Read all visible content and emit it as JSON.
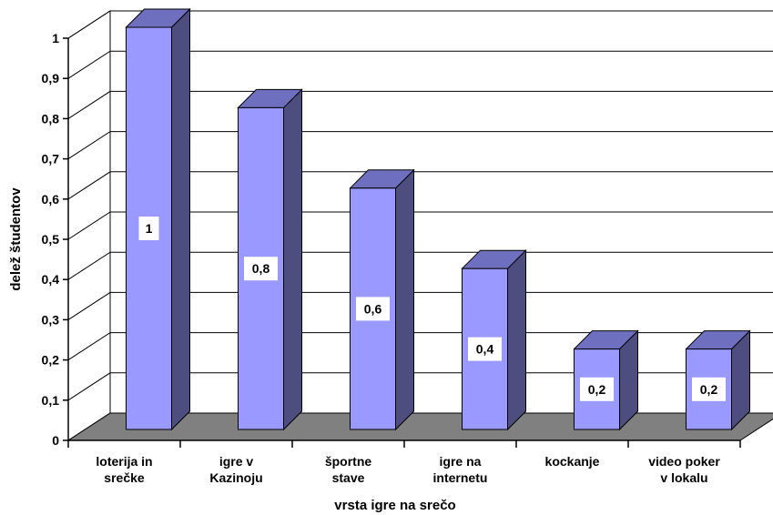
{
  "chart_data": {
    "type": "bar",
    "style": "3d-column",
    "title": "",
    "xlabel": "vrsta igre na srečo",
    "ylabel": "delež študentov",
    "ylim": [
      0,
      1
    ],
    "yticks": [
      "0",
      "0,1",
      "0,2",
      "0,3",
      "0,4",
      "0,5",
      "0,6",
      "0,7",
      "0,8",
      "0,9",
      "1"
    ],
    "categories": [
      [
        "loterija in",
        "srečke"
      ],
      [
        "igre v",
        "Kazinoju"
      ],
      [
        "športne",
        "stave"
      ],
      [
        "igre na",
        "internetu"
      ],
      [
        "kockanje"
      ],
      [
        "video poker",
        "v lokalu"
      ]
    ],
    "values": [
      1,
      0.8,
      0.6,
      0.4,
      0.2,
      0.2
    ],
    "data_labels": [
      "1",
      "0,8",
      "0,6",
      "0,4",
      "0,2",
      "0,2"
    ],
    "grid": true,
    "legend": "none",
    "colors": {
      "bar_front": "#9999ff",
      "bar_side": "#4d4d80",
      "bar_top": "#6f6fc0",
      "floor": "#808080",
      "wall": "#ffffff",
      "gridline": "#000000"
    }
  }
}
